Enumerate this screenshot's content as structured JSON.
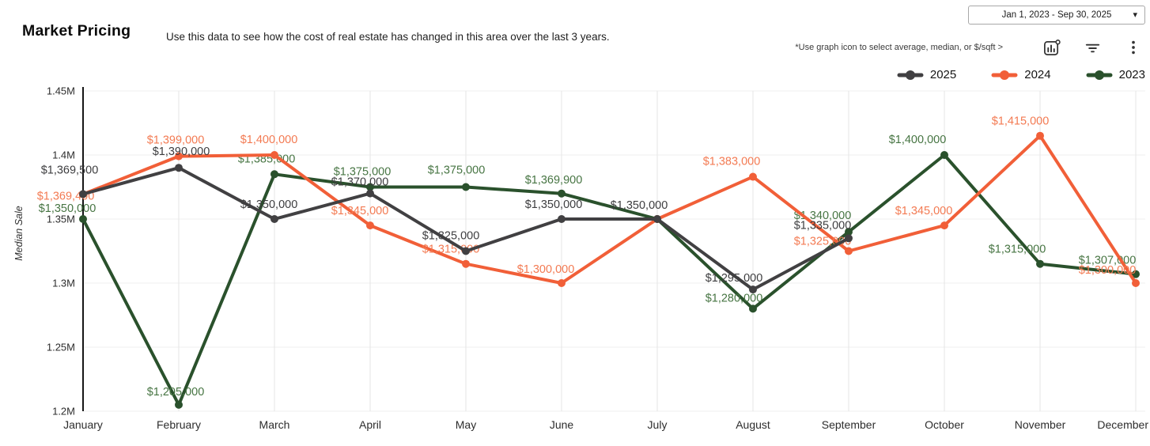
{
  "header": {
    "title": "Market Pricing",
    "subtitle": "Use this data to see how the cost of real estate has changed in this area over the last 3 years.",
    "date_range": "Jan 1, 2023 - Sep 30, 2025",
    "caret": "▾",
    "hint": "*Use graph icon to  select average, median, or $/sqft >"
  },
  "chart_data": {
    "type": "line",
    "title": "Market Pricing",
    "xlabel": "",
    "ylabel": "Median Sale",
    "ylim": [
      1200000,
      1450000
    ],
    "y_ticks": [
      "1.45M",
      "1.4M",
      "1.35M",
      "1.3M",
      "1.25M",
      "1.2M"
    ],
    "grid": true,
    "legend_position": "top-right",
    "categories": [
      "January",
      "February",
      "March",
      "April",
      "May",
      "June",
      "July",
      "August",
      "September",
      "October",
      "November",
      "December"
    ],
    "series": [
      {
        "name": "2025",
        "color": "#414042",
        "label_color": "#3d3d3f",
        "values": [
          1369500,
          1390000,
          1350000,
          1370000,
          1325000,
          1350000,
          1350000,
          1295000,
          1335000,
          null,
          null,
          null
        ],
        "labels": [
          "$1,369,500",
          "$1,390,000",
          "$1,350,000",
          "$1,370,000",
          "$1,325,000",
          "$1,350,000",
          "$1,350,000",
          "$1,295,000",
          "$1,335,000",
          null,
          null,
          null
        ],
        "label_offsets": [
          [
            -17,
            -26
          ],
          [
            3,
            -16
          ],
          [
            -7,
            -14
          ],
          [
            -13,
            -10
          ],
          [
            -19,
            -15
          ],
          [
            -10,
            -14
          ],
          [
            -23,
            -13
          ],
          [
            -24,
            -10
          ],
          [
            -33,
            -12
          ],
          null,
          null,
          null
        ]
      },
      {
        "name": "2024",
        "color": "#F15F38",
        "label_color": "#F37A52",
        "values": [
          1369400,
          1399000,
          1400000,
          1345000,
          1315000,
          1300000,
          1350000,
          1383000,
          1325000,
          1345000,
          1415000,
          1300000
        ],
        "labels": [
          "$1,369,400",
          "$1,399,000",
          "$1,400,000",
          "$1,345,000",
          "$1,315,000",
          "$1,300,000",
          null,
          "$1,383,000",
          "$1,325,000",
          "$1,345,000",
          "$1,415,000",
          "$1,300,000"
        ],
        "label_offsets": [
          [
            -22,
            7
          ],
          [
            -4,
            -16
          ],
          [
            -7,
            -15
          ],
          [
            -13,
            -14
          ],
          [
            -19,
            -14
          ],
          [
            -20,
            -13
          ],
          null,
          [
            -27,
            -15
          ],
          [
            -33,
            -8
          ],
          [
            -26,
            -14
          ],
          [
            -25,
            -14
          ],
          [
            -36,
            -12
          ]
        ]
      },
      {
        "name": "2023",
        "color": "#2A512C",
        "label_color": "#477543",
        "values": [
          1350000,
          1205000,
          1385000,
          1375000,
          1375000,
          1369900,
          1350000,
          1280000,
          1340000,
          1400000,
          1315000,
          1307000
        ],
        "labels": [
          "$1,350,000",
          "$1,205,000",
          "$1,385,000",
          "$1,375,000",
          "$1,375,000",
          "$1,369,900",
          null,
          "$1,280,000",
          "$1,340,000",
          "$1,400,000",
          "$1,315,000",
          "$1,307,000"
        ],
        "label_offsets": [
          [
            -20,
            -9
          ],
          [
            -4,
            -12
          ],
          [
            -10,
            -15
          ],
          [
            -10,
            -15
          ],
          [
            -12,
            -17
          ],
          [
            -10,
            -13
          ],
          null,
          [
            -24,
            -9
          ],
          [
            -33,
            -16
          ],
          [
            -34,
            -15
          ],
          [
            -29,
            -14
          ],
          [
            -36,
            -13
          ]
        ]
      }
    ]
  }
}
